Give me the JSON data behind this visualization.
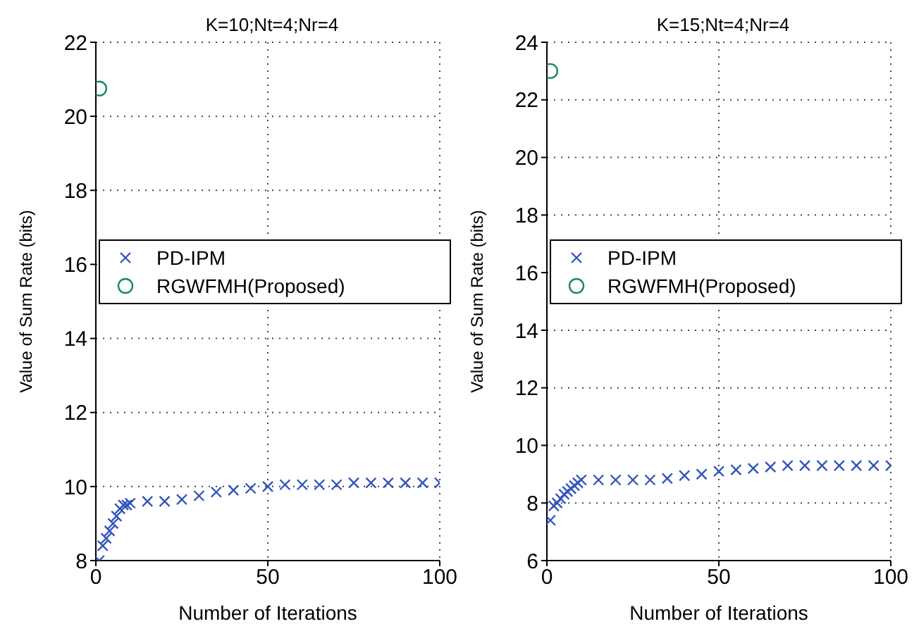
{
  "chart_data": [
    {
      "type": "scatter",
      "title": "K=10;Nt=4;Nr=4",
      "xlabel": "Number of Iterations",
      "ylabel": "Value of Sum Rate (bits)",
      "xlim": [
        0,
        100
      ],
      "xticks": [
        0,
        50,
        100
      ],
      "ylim": [
        8,
        22
      ],
      "yticks": [
        8,
        10,
        12,
        14,
        16,
        18,
        20,
        22
      ],
      "grid": true,
      "legend": "left",
      "series": [
        {
          "name": "PD-IPM",
          "color": "#3355bb",
          "marker": "cross",
          "x": [
            1,
            2,
            3,
            4,
            5,
            6,
            7,
            8,
            9,
            10,
            15,
            20,
            25,
            30,
            35,
            40,
            45,
            50,
            55,
            60,
            65,
            70,
            75,
            80,
            85,
            90,
            95,
            100
          ],
          "values": [
            8.0,
            8.4,
            8.6,
            8.8,
            9.0,
            9.2,
            9.4,
            9.5,
            9.5,
            9.55,
            9.6,
            9.6,
            9.65,
            9.75,
            9.85,
            9.9,
            9.95,
            10.0,
            10.05,
            10.05,
            10.05,
            10.05,
            10.1,
            10.1,
            10.1,
            10.1,
            10.1,
            10.1
          ]
        },
        {
          "name": "RGWFMH(Proposed)",
          "color": "#1a8a5a",
          "marker": "circle",
          "x": [
            1
          ],
          "values": [
            20.75
          ]
        }
      ]
    },
    {
      "type": "scatter",
      "title": "K=15;Nt=4;Nr=4",
      "xlabel": "Number of Iterations",
      "ylabel": "Value of Sum Rate (bits)",
      "xlim": [
        0,
        100
      ],
      "xticks": [
        0,
        50,
        100
      ],
      "ylim": [
        6,
        24
      ],
      "yticks": [
        6,
        8,
        10,
        12,
        14,
        16,
        18,
        20,
        22,
        24
      ],
      "grid": true,
      "legend": "left",
      "series": [
        {
          "name": "PD-IPM",
          "color": "#3355bb",
          "marker": "cross",
          "x": [
            1,
            2,
            3,
            4,
            5,
            6,
            7,
            8,
            9,
            10,
            15,
            20,
            25,
            30,
            35,
            40,
            45,
            50,
            55,
            60,
            65,
            70,
            75,
            80,
            85,
            90,
            95,
            100
          ],
          "values": [
            7.4,
            7.9,
            8.0,
            8.15,
            8.3,
            8.4,
            8.5,
            8.6,
            8.7,
            8.8,
            8.8,
            8.8,
            8.8,
            8.8,
            8.85,
            8.95,
            9.0,
            9.1,
            9.15,
            9.2,
            9.25,
            9.3,
            9.3,
            9.3,
            9.3,
            9.3,
            9.3,
            9.3
          ]
        },
        {
          "name": "RGWFMH(Proposed)",
          "color": "#1a8a5a",
          "marker": "circle",
          "x": [
            1
          ],
          "values": [
            23
          ]
        }
      ]
    }
  ]
}
